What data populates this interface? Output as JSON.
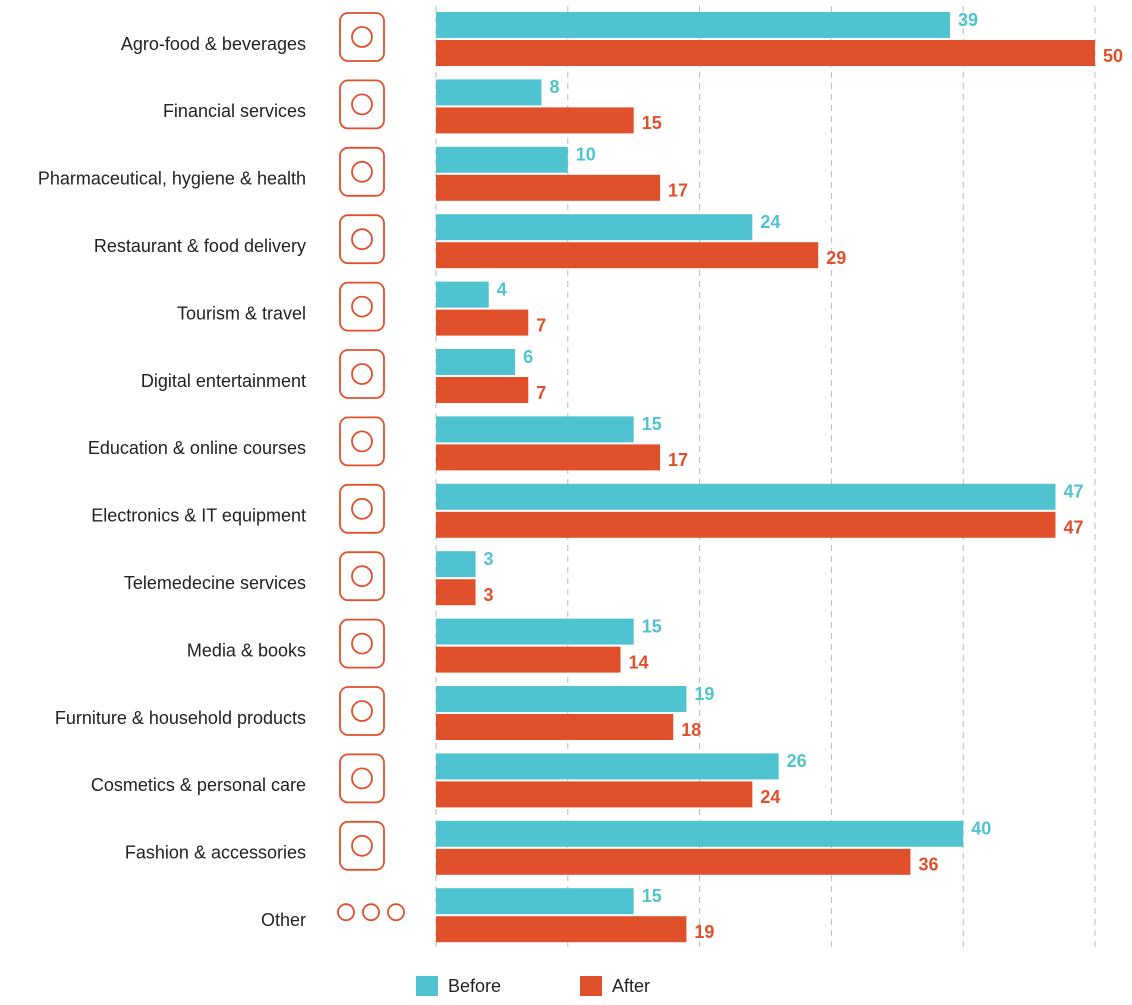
{
  "chart_data": {
    "type": "bar",
    "orientation": "horizontal",
    "categories": [
      "Agro-food & beverages",
      "Financial services",
      "Pharmaceutical, hygiene & health",
      "Restaurant & food delivery",
      "Tourism & travel",
      "Digital entertainment",
      "Education & online courses",
      "Electronics & IT equipment",
      "Telemedecine services",
      "Media & books",
      "Furniture & household products",
      "Cosmetics & personal care",
      "Fashion & accessories",
      "Other"
    ],
    "series": [
      {
        "name": "Before",
        "color": "#4fc3cf",
        "values": [
          39,
          8,
          10,
          24,
          4,
          6,
          15,
          47,
          3,
          15,
          19,
          26,
          40,
          15
        ]
      },
      {
        "name": "After",
        "color": "#e0502a",
        "values": [
          50,
          15,
          17,
          29,
          7,
          7,
          17,
          47,
          3,
          14,
          18,
          24,
          36,
          19
        ]
      }
    ],
    "xlim": [
      0,
      50
    ],
    "xticks": [
      0,
      10,
      20,
      30,
      40,
      50
    ],
    "grid": true,
    "legend": "bottom"
  }
}
